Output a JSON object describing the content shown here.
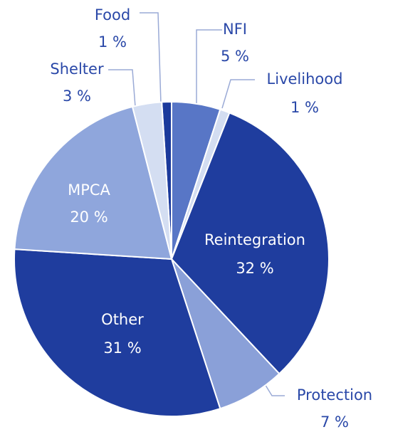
{
  "chart_data": {
    "type": "pie",
    "categories": [
      "Food",
      "NFI",
      "Livelihood",
      "Reintegration",
      "Protection",
      "Other",
      "MPCA",
      "Shelter"
    ],
    "values": [
      1,
      5,
      1,
      32,
      7,
      31,
      20,
      3
    ],
    "value_labels": [
      "1 %",
      "5 %",
      "1 %",
      "32 %",
      "7 %",
      "31 %",
      "20 %",
      "3 %"
    ],
    "colors": [
      "#1b3a9c",
      "#5876c6",
      "#d3ddf1",
      "#1f3d9e",
      "#8aa0d8",
      "#1f3d9e",
      "#8fa6dc",
      "#d4def2"
    ]
  }
}
